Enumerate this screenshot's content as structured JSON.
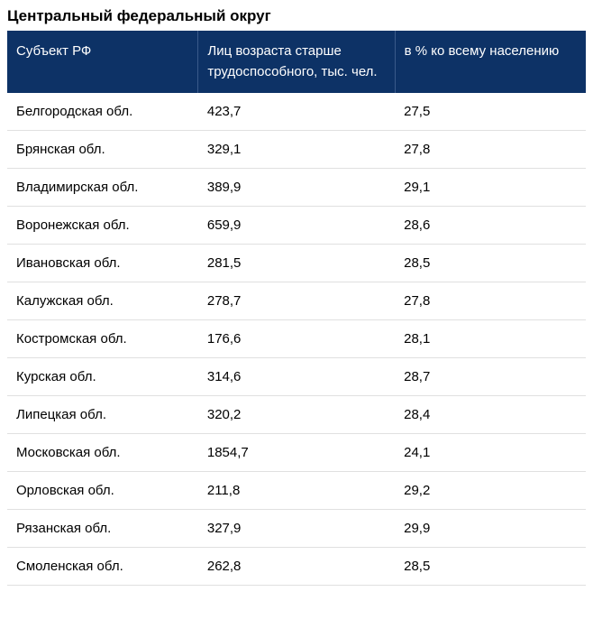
{
  "title": "Центральный федеральный округ",
  "table": {
    "type": "table",
    "header_bg": "#0d3266",
    "header_fg": "#ffffff",
    "row_border": "#e0e0e0",
    "columns": [
      "Субъект РФ",
      "Лиц возраста старше трудоспособного, тыс. чел.",
      "в % ко всему населению"
    ],
    "rows": [
      [
        "Белгородская обл.",
        "423,7",
        "27,5"
      ],
      [
        "Брянская обл.",
        "329,1",
        "27,8"
      ],
      [
        "Владимирская обл.",
        "389,9",
        "29,1"
      ],
      [
        "Воронежская обл.",
        "659,9",
        "28,6"
      ],
      [
        "Ивановская обл.",
        "281,5",
        "28,5"
      ],
      [
        "Калужская обл.",
        "278,7",
        "27,8"
      ],
      [
        "Костромская обл.",
        "176,6",
        "28,1"
      ],
      [
        "Курская обл.",
        "314,6",
        "28,7"
      ],
      [
        "Липецкая обл.",
        "320,2",
        "28,4"
      ],
      [
        "Московская обл.",
        "1854,7",
        "24,1"
      ],
      [
        "Орловская обл.",
        "211,8",
        "29,2"
      ],
      [
        "Рязанская обл.",
        "327,9",
        "29,9"
      ],
      [
        "Смоленская обл.",
        "262,8",
        "28,5"
      ]
    ]
  }
}
